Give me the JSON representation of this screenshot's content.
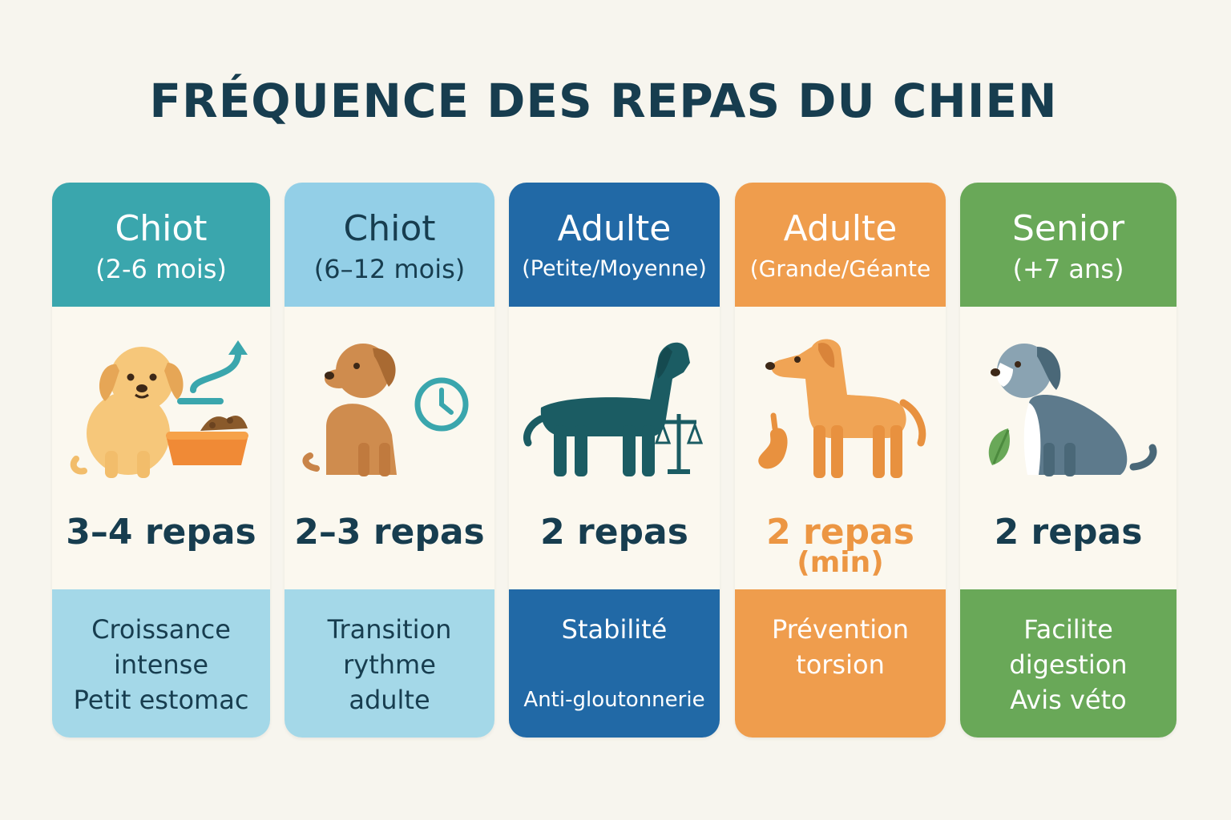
{
  "title": "FRÉQUENCE DES REPAS DU CHIEN",
  "cards": [
    {
      "name": "Chiot",
      "subtitle": "(2-6 mois)",
      "meals": "3–4 repas",
      "notes": [
        "Croissance",
        "intense",
        "Petit estomac"
      ],
      "icons": [
        "puppy-icon",
        "food-bowl-icon",
        "arrow-up-icon"
      ],
      "color": "#3aa6ad"
    },
    {
      "name": "Chiot",
      "subtitle": "(6–12 mois)",
      "meals": "2–3 repas",
      "notes": [
        "Transition",
        "rythme",
        "adulte"
      ],
      "icons": [
        "young-dog-icon",
        "clock-icon"
      ],
      "color": "#93cfe7"
    },
    {
      "name": "Adulte",
      "subtitle": "(Petite/Moyenne)",
      "meals": "2 repas",
      "notes": [
        "Stabilité",
        "Anti-gloutonnerie"
      ],
      "icons": [
        "adult-dog-icon",
        "balance-scale-icon"
      ],
      "color": "#2169a6"
    },
    {
      "name": "Adulte",
      "subtitle": "(Grande/Géante",
      "meals": "2 repas",
      "meals_sub": "(min)",
      "notes": [
        "Prévention",
        "torsion"
      ],
      "icons": [
        "large-dog-icon",
        "stomach-icon"
      ],
      "color": "#ef9d4d"
    },
    {
      "name": "Senior",
      "subtitle": "(+7 ans)",
      "meals": "2 repas",
      "notes": [
        "Facilite",
        "digestion",
        "Avis véto"
      ],
      "icons": [
        "senior-dog-icon",
        "leaf-icon"
      ],
      "color": "#69a858"
    }
  ]
}
